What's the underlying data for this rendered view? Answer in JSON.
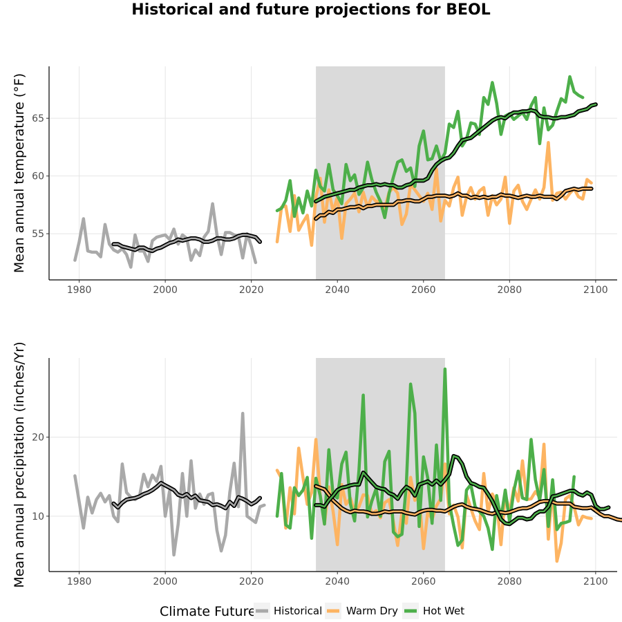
{
  "title": "Historical and future projections for BEOL",
  "colors": {
    "Historical": "#a9a9a9",
    "Warm Dry": "#fdb462",
    "Hot Wet": "#4daf4a",
    "smooth_outline": "#000000",
    "period_shade": "#dadada",
    "grid": "#e5e5e5"
  },
  "legend": {
    "title": "Climate Future",
    "items": [
      "Historical",
      "Warm Dry",
      "Hot Wet"
    ]
  },
  "chart_data": [
    {
      "type": "line",
      "ylabel": "Mean annual temperature (°F)",
      "xlim": [
        1973,
        2105
      ],
      "ylim": [
        51,
        69.5
      ],
      "xticks": [
        1980,
        2000,
        2020,
        2040,
        2060,
        2080,
        2100
      ],
      "yticks": [
        55,
        60,
        65
      ],
      "shaded_period": [
        2035,
        2065
      ],
      "grid": true,
      "series": [
        {
          "name": "Historical",
          "x_start": 1979,
          "values": [
            52.7,
            54.3,
            56.3,
            53.5,
            53.4,
            53.4,
            53.0,
            55.8,
            54.1,
            53.6,
            53.4,
            53.7,
            53.2,
            52.1,
            54.9,
            53.5,
            53.5,
            52.6,
            54.4,
            54.7,
            54.8,
            54.9,
            54.5,
            55.4,
            54.1,
            54.9,
            54.6,
            52.7,
            53.6,
            53.1,
            54.7,
            55.2,
            57.6,
            54.9,
            53.2,
            55.1,
            55.1,
            54.9,
            54.8,
            52.9,
            55.0,
            53.9,
            52.5
          ],
          "smooth_x_start": 1988,
          "smooth": [
            54.1,
            54.1,
            53.9,
            53.8,
            53.7,
            53.6,
            53.8,
            53.8,
            53.6,
            53.5,
            53.7,
            53.8,
            54.0,
            54.2,
            54.3,
            54.5,
            54.4,
            54.5,
            54.6,
            54.6,
            54.5,
            54.3,
            54.3,
            54.4,
            54.6,
            54.6,
            54.5,
            54.5,
            54.6,
            54.8,
            54.9,
            54.9,
            54.8,
            54.7,
            54.3
          ]
        },
        {
          "name": "Warm Dry",
          "x_start": 2026,
          "values": [
            54.3,
            57.3,
            57.4,
            55.2,
            58.3,
            55.3,
            56.0,
            56.6,
            54.0,
            58.2,
            59.8,
            56.0,
            58.8,
            56.9,
            58.2,
            54.6,
            57.6,
            58.0,
            58.5,
            56.9,
            58.6,
            57.3,
            58.2,
            57.8,
            57.8,
            57.2,
            58.6,
            59.0,
            58.5,
            55.8,
            56.7,
            59.3,
            58.8,
            58.3,
            57.8,
            58.5,
            57.1,
            60.6,
            56.1,
            57.9,
            57.4,
            59.0,
            59.9,
            56.6,
            58.2,
            59.0,
            58.0,
            58.7,
            59.0,
            56.6,
            58.3,
            57.5,
            58.0,
            59.9,
            55.9,
            58.7,
            59.2,
            57.8,
            57.1,
            58.0,
            58.8,
            58.0,
            59.0,
            62.9,
            57.9,
            58.5,
            58.6,
            58.0,
            58.5,
            58.9,
            58.2,
            58.0,
            59.7,
            59.4
          ],
          "smooth_x_start": 2035,
          "smooth": [
            56.3,
            56.6,
            56.6,
            56.9,
            56.8,
            57.1,
            57.1,
            57.2,
            57.3,
            57.3,
            57.4,
            57.2,
            57.4,
            57.4,
            57.5,
            57.5,
            57.5,
            57.5,
            57.5,
            57.8,
            57.8,
            57.9,
            57.9,
            57.8,
            57.8,
            58.0,
            58.2,
            58.2,
            58.3,
            58.3,
            58.3,
            58.2,
            58.3,
            58.5,
            58.3,
            58.3,
            58.1,
            58.2,
            58.1,
            58.2,
            58.1,
            58.2,
            58.2,
            58.4,
            58.3,
            58.3,
            58.2,
            58.1,
            58.2,
            58.3,
            58.2,
            58.2,
            58.3,
            58.2,
            58.2,
            58.2,
            58.0,
            58.3,
            58.7,
            58.8,
            58.9,
            58.8,
            58.9,
            58.9,
            58.9
          ]
        },
        {
          "name": "Hot Wet",
          "x_start": 2026,
          "values": [
            57.0,
            57.2,
            57.9,
            59.6,
            56.5,
            58.1,
            56.8,
            58.7,
            57.4,
            60.5,
            59.1,
            58.7,
            61.0,
            58.8,
            58.3,
            57.6,
            61.0,
            59.6,
            60.1,
            58.4,
            59.0,
            61.2,
            59.7,
            58.6,
            57.8,
            56.4,
            58.5,
            59.9,
            61.2,
            61.4,
            60.4,
            60.7,
            59.1,
            62.6,
            63.9,
            61.4,
            61.5,
            62.6,
            61.3,
            62.0,
            64.5,
            64.2,
            65.6,
            62.6,
            63.2,
            64.6,
            64.5,
            63.6,
            66.8,
            66.2,
            68.1,
            66.3,
            63.6,
            65.2,
            65.4,
            64.9,
            65.2,
            65.5,
            64.9,
            66.1,
            66.8,
            62.8,
            65.9,
            64.0,
            64.4,
            65.6,
            66.7,
            66.4,
            68.6,
            67.3,
            67.0,
            66.8
          ],
          "smooth_x_start": 2035,
          "smooth": [
            57.8,
            58.0,
            58.2,
            58.3,
            58.4,
            58.5,
            58.6,
            58.7,
            58.8,
            58.8,
            59.0,
            59.1,
            59.2,
            59.2,
            59.3,
            59.2,
            59.3,
            59.2,
            59.2,
            59.0,
            59.0,
            59.2,
            59.3,
            59.6,
            59.6,
            59.6,
            59.8,
            60.5,
            61.0,
            61.3,
            61.5,
            61.6,
            62.0,
            62.6,
            63.1,
            63.2,
            63.3,
            63.6,
            63.9,
            64.2,
            64.5,
            64.8,
            65.0,
            65.1,
            65.0,
            65.3,
            65.5,
            65.5,
            65.6,
            65.6,
            65.7,
            65.6,
            65.2,
            65.1,
            65.1,
            65.0,
            65.0,
            65.1,
            65.1,
            65.2,
            65.3,
            65.6,
            65.7,
            65.8,
            66.1,
            66.2
          ]
        }
      ]
    },
    {
      "type": "line",
      "ylabel": "Mean annual precipitation (inches/Yr)",
      "xlim": [
        1973,
        2105
      ],
      "ylim": [
        3,
        30
      ],
      "xticks": [
        1980,
        2000,
        2020,
        2040,
        2060,
        2080,
        2100
      ],
      "yticks": [
        10,
        20
      ],
      "shaded_period": [
        2035,
        2065
      ],
      "grid": true,
      "series": [
        {
          "name": "Historical",
          "x_start": 1979,
          "values": [
            15.1,
            11.8,
            8.5,
            12.4,
            10.4,
            12.1,
            12.9,
            11.8,
            12.6,
            10.0,
            9.3,
            16.6,
            13.0,
            12.4,
            12.1,
            12.5,
            15.3,
            13.7,
            15.2,
            14.4,
            16.3,
            10.0,
            13.2,
            5.1,
            9.0,
            15.4,
            10.0,
            17.0,
            11.0,
            12.8,
            11.5,
            12.7,
            12.9,
            8.2,
            5.6,
            7.6,
            13.0,
            16.7,
            11.2,
            23.0,
            10.0,
            9.6,
            9.2,
            11.2,
            11.4
          ],
          "smooth_x_start": 1988,
          "smooth": [
            11.6,
            11.1,
            11.7,
            12.1,
            12.2,
            12.3,
            12.5,
            12.8,
            13.0,
            13.3,
            13.7,
            14.2,
            13.9,
            13.6,
            13.3,
            12.7,
            12.5,
            12.8,
            12.3,
            12.6,
            12.0,
            11.9,
            11.8,
            11.4,
            11.5,
            11.3,
            11.0,
            11.8,
            11.3,
            12.4,
            12.2,
            11.9,
            11.5,
            11.8,
            12.3
          ]
        },
        {
          "name": "Warm Dry",
          "x_start": 2026,
          "values": [
            15.8,
            14.8,
            8.5,
            13.6,
            10.3,
            18.6,
            14.9,
            11.5,
            13.0,
            19.7,
            12.7,
            9.0,
            13.7,
            10.6,
            6.4,
            14.0,
            11.5,
            12.3,
            10.6,
            11.2,
            12.7,
            12.6,
            10.3,
            10.7,
            9.8,
            11.7,
            12.1,
            9.3,
            6.3,
            10.5,
            9.1,
            14.9,
            12.0,
            12.6,
            5.9,
            10.6,
            9.6,
            11.3,
            12.2,
            16.6,
            10.3,
            11.4,
            9.9,
            6.0,
            12.7,
            11.0,
            9.4,
            8.3,
            15.4,
            10.5,
            12.8,
            11.6,
            6.4,
            12.8,
            10.5,
            13.6,
            11.9,
            17.0,
            12.1,
            12.2,
            13.1,
            12.4,
            19.1,
            7.1,
            13.8,
            4.3,
            6.6,
            12.2,
            12.6,
            11.2,
            8.9,
            10.0,
            9.8,
            9.7
          ],
          "smooth_x_start": 2035,
          "smooth": [
            13.8,
            13.6,
            13.4,
            12.7,
            12.0,
            11.5,
            11.0,
            10.7,
            10.5,
            10.7,
            10.6,
            10.6,
            10.5,
            10.3,
            10.3,
            10.4,
            10.6,
            10.5,
            10.6,
            10.6,
            10.6,
            10.4,
            10.3,
            10.2,
            10.5,
            10.7,
            10.8,
            10.8,
            10.7,
            10.7,
            10.6,
            10.9,
            11.2,
            11.4,
            11.5,
            11.2,
            11.0,
            10.9,
            10.8,
            10.6,
            10.4,
            10.3,
            10.5,
            10.5,
            10.4,
            10.5,
            10.7,
            10.9,
            11.0,
            11.0,
            11.2,
            11.5,
            11.8,
            11.9,
            11.9,
            11.8,
            11.6,
            11.6,
            11.6,
            11.6,
            11.2,
            11.1,
            11.0,
            11.0,
            11.1,
            10.7,
            10.3,
            10.0,
            10.0,
            9.8,
            9.6,
            9.5,
            9.7
          ]
        },
        {
          "name": "Hot Wet",
          "x_start": 2026,
          "values": [
            10.0,
            15.4,
            8.9,
            8.5,
            13.6,
            12.6,
            13.3,
            14.9,
            7.2,
            14.8,
            12.6,
            9.0,
            18.4,
            12.7,
            12.3,
            16.6,
            18.1,
            11.6,
            9.4,
            15.8,
            25.3,
            9.9,
            11.9,
            13.5,
            10.0,
            16.9,
            18.2,
            8.0,
            7.4,
            7.7,
            13.9,
            26.7,
            23.0,
            8.7,
            17.5,
            14.8,
            9.1,
            19.0,
            12.0,
            28.6,
            11.7,
            8.8,
            6.3,
            7.0,
            13.3,
            14.0,
            11.2,
            10.6,
            10.0,
            8.5,
            5.8,
            12.6,
            9.7,
            13.3,
            9.3,
            13.2,
            15.7,
            12.3,
            12.1,
            19.7,
            14.6,
            12.0,
            15.9,
            8.7,
            14.6,
            8.3,
            9.1,
            9.2,
            9.4,
            15.0
          ],
          "smooth_x_start": 2035,
          "smooth": [
            11.4,
            11.4,
            11.2,
            12.0,
            12.6,
            13.3,
            13.6,
            13.7,
            13.9,
            14.0,
            14.0,
            15.5,
            14.9,
            14.3,
            13.7,
            13.5,
            13.4,
            12.9,
            12.7,
            12.2,
            13.1,
            13.7,
            13.4,
            12.6,
            14.0,
            14.2,
            14.4,
            14.0,
            14.5,
            14.0,
            14.6,
            15.3,
            17.6,
            17.4,
            16.6,
            15.0,
            14.2,
            14.0,
            13.7,
            13.6,
            12.8,
            11.9,
            10.7,
            9.6,
            9.1,
            9.0,
            9.4,
            9.8,
            9.8,
            9.6,
            9.7,
            10.3,
            10.6,
            10.6,
            11.2,
            12.5,
            12.6,
            12.8,
            13.0,
            13.2,
            13.2,
            12.8,
            12.6,
            13.0,
            12.7,
            11.3,
            10.9,
            10.9,
            11.1
          ]
        }
      ]
    }
  ]
}
